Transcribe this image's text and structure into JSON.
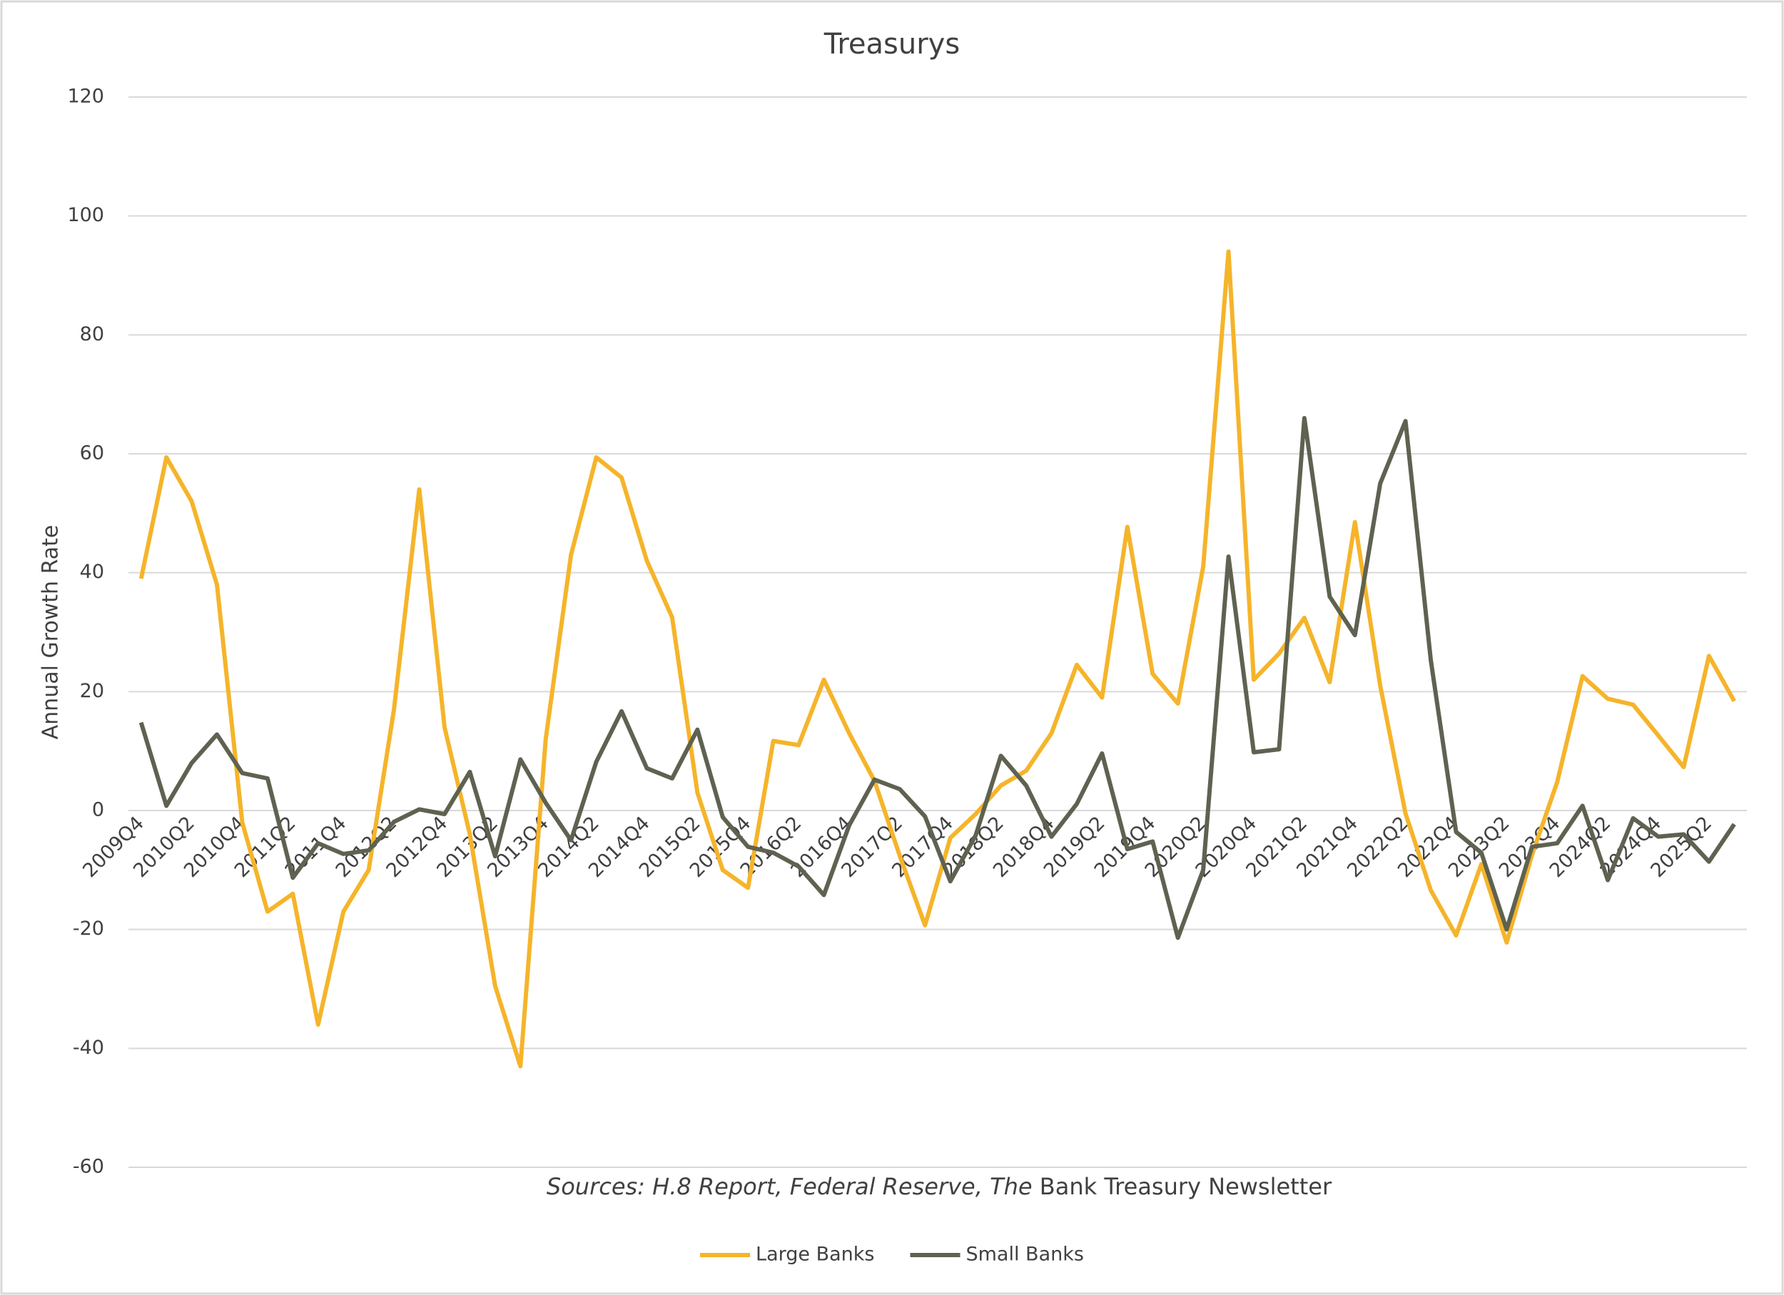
{
  "chart_data": {
    "type": "line",
    "title": "Treasurys",
    "y_label": "Annual Growth Rate",
    "annotation": [
      "Sources: H.8 Report, Federal Reserve, The",
      "Bank Treasury Newsletter"
    ],
    "categories": [
      "2009Q4",
      null,
      "2010Q2",
      null,
      "2010Q4",
      null,
      "2011Q2",
      null,
      "2011Q4",
      null,
      "2012Q2",
      null,
      "2012Q4",
      null,
      "2013Q2",
      null,
      "2013Q4",
      null,
      "2014Q2",
      null,
      "2014Q4",
      null,
      "2015Q2",
      null,
      "2015Q4",
      null,
      "2016Q2",
      null,
      "2016Q4",
      null,
      "2017Q2",
      null,
      "2017Q4",
      null,
      "2018Q2",
      null,
      "2018Q4",
      null,
      "2019Q2",
      null,
      "2019Q4",
      null,
      "2020Q2",
      null,
      "2020Q4",
      null,
      "2021Q2",
      null,
      "2021Q4",
      null,
      "2022Q2",
      null,
      "2022Q4",
      null,
      "2023Q2",
      null,
      "2023Q4",
      null,
      "2024Q2",
      null,
      "2024Q4",
      null,
      "2025Q2",
      null
    ],
    "series": [
      {
        "name": "Large Banks",
        "color": "#f5b42a",
        "values": [
          39,
          59.4,
          52,
          38,
          -2,
          -17,
          -14,
          -36,
          -17,
          -10,
          17,
          54,
          14,
          -4,
          -29.5,
          -43,
          12,
          43,
          59.4,
          56,
          42,
          32.5,
          3,
          -10,
          -13,
          11.7,
          11,
          22,
          13,
          5,
          -7.6,
          -19.3,
          -4.6,
          -0.6,
          4.2,
          6.7,
          13,
          24.5,
          19,
          47.7,
          23,
          18,
          41,
          94,
          22,
          26.4,
          32.4,
          21.6,
          48.5,
          21,
          -0.5,
          -13.4,
          -21,
          -9,
          -22.2,
          -7.5,
          4.8,
          22.6,
          18.8,
          17.8,
          12.6,
          7.3,
          26,
          18.4
        ]
      },
      {
        "name": "Small Banks",
        "color": "#5e6250",
        "values": [
          14.8,
          0.8,
          8,
          12.8,
          6.3,
          5.4,
          -11.3,
          -5.5,
          -7.3,
          -6.7,
          -1.9,
          0.2,
          -0.6,
          6.5,
          -7.7,
          8.6,
          1.3,
          -5,
          8.2,
          16.7,
          7.1,
          5.4,
          13.6,
          -1.1,
          -6.1,
          -7.1,
          -9.4,
          -14.2,
          -2.5,
          5.2,
          3.6,
          -1,
          -11.9,
          -4.2,
          9.2,
          4.2,
          -4.4,
          1.1,
          9.6,
          -6.5,
          -5.2,
          -21.4,
          -10,
          42.7,
          9.8,
          10.3,
          66,
          36,
          29.5,
          55,
          65.5,
          25.3,
          -3.6,
          -7.1,
          -20,
          -6.1,
          -5.5,
          0.8,
          -11.7,
          -1.3,
          -4.4,
          -4,
          -8.6,
          -2.3
        ]
      }
    ],
    "ylim": [
      -60,
      120
    ],
    "yticks": [
      -60,
      -40,
      -20,
      0,
      20,
      40,
      60,
      80,
      100,
      120
    ],
    "grid": true,
    "legend": "bottom"
  }
}
